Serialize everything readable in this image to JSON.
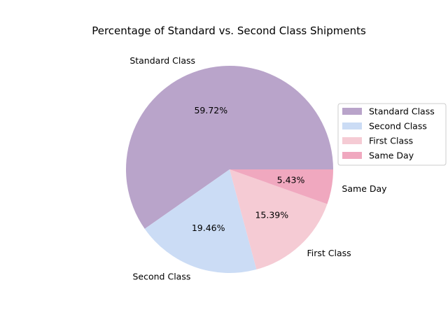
{
  "chart_data": {
    "type": "pie",
    "title": "Percentage of Standard vs. Second Class Shipments",
    "slices": [
      {
        "label": "Standard Class",
        "value": 59.72,
        "pct_label": "59.72%",
        "color": "#b9a4ca"
      },
      {
        "label": "Second Class",
        "value": 19.46,
        "pct_label": "19.46%",
        "color": "#cbdcf5"
      },
      {
        "label": "First Class",
        "value": 15.39,
        "pct_label": "15.39%",
        "color": "#f5cbd4"
      },
      {
        "label": "Same Day",
        "value": 5.43,
        "pct_label": "5.43%",
        "color": "#f0a8bf"
      }
    ],
    "start_angle": "0 degrees (3 o'clock), counterclockwise",
    "legend_position": "right"
  }
}
